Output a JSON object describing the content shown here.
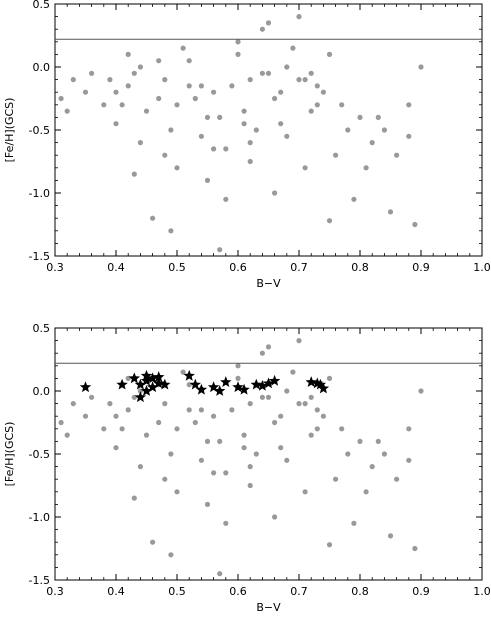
{
  "chart_data": [
    {
      "type": "scatter",
      "xlabel": "B−V",
      "ylabel": "[Fe/H](GCS)",
      "xlim": [
        0.3,
        1.0
      ],
      "ylim": [
        -1.5,
        0.5
      ],
      "xticks": [
        "0.3",
        "0.4",
        "0.5",
        "0.6",
        "0.7",
        "0.8",
        "0.9",
        "1.0"
      ],
      "yticks": [
        "0.5",
        "0.0",
        "-0.5",
        "-1.0",
        "-1.5"
      ],
      "hline": 0.22,
      "grid": false,
      "point_color": "#999999",
      "series": [
        {
          "x": [
            0.31,
            0.33,
            0.36,
            0.38,
            0.4,
            0.42,
            0.45,
            0.48,
            0.5,
            0.53,
            0.56,
            0.59,
            0.62,
            0.65,
            0.68,
            0.71,
            0.74,
            0.77,
            0.8,
            0.84,
            0.88,
            0.9,
            0.32,
            0.35,
            0.39,
            0.43,
            0.47,
            0.52,
            0.57,
            0.61,
            0.66,
            0.7,
            0.73,
            0.78,
            0.82,
            0.86,
            0.4,
            0.44,
            0.49,
            0.54,
            0.58,
            0.63,
            0.67,
            0.72,
            0.76,
            0.81,
            0.42,
            0.51,
            0.6,
            0.64,
            0.69,
            0.75,
            0.5,
            0.55,
            0.62,
            0.46,
            0.58,
            0.66,
            0.71,
            0.79,
            0.85,
            0.89,
            0.43,
            0.48,
            0.56,
            0.62,
            0.68,
            0.44,
            0.52,
            0.6,
            0.72,
            0.83,
            0.75,
            0.49,
            0.57,
            0.65,
            0.7,
            0.54,
            0.47,
            0.61,
            0.67,
            0.73,
            0.88,
            0.55,
            0.41,
            0.64
          ],
          "y": [
            -0.25,
            -0.1,
            -0.05,
            -0.3,
            -0.2,
            -0.15,
            -0.35,
            -0.1,
            -0.3,
            -0.25,
            -0.2,
            -0.15,
            -0.1,
            -0.05,
            0.0,
            -0.1,
            -0.2,
            -0.3,
            -0.4,
            -0.5,
            -0.55,
            0.0,
            -0.35,
            -0.2,
            -0.1,
            -0.05,
            0.05,
            -0.15,
            -0.4,
            -0.35,
            -0.25,
            -0.1,
            -0.3,
            -0.5,
            -0.6,
            -0.7,
            -0.45,
            -0.6,
            -0.5,
            -0.55,
            -0.65,
            -0.5,
            -0.45,
            -0.35,
            -0.7,
            -0.8,
            0.1,
            0.15,
            0.2,
            0.3,
            0.15,
            0.1,
            -0.8,
            -0.9,
            -0.75,
            -1.2,
            -1.05,
            -1.0,
            -0.8,
            -1.05,
            -1.15,
            -1.25,
            -0.85,
            -0.7,
            -0.65,
            -0.6,
            -0.55,
            0.0,
            0.05,
            0.1,
            -0.05,
            -0.4,
            -1.22,
            -1.3,
            -1.45,
            0.35,
            0.4,
            -0.15,
            -0.25,
            -0.45,
            -0.2,
            -0.15,
            -0.3,
            -0.4,
            -0.3,
            -0.05
          ]
        }
      ]
    },
    {
      "type": "scatter",
      "xlabel": "B−V",
      "ylabel": "[Fe/H](GCS)",
      "xlim": [
        0.3,
        1.0
      ],
      "ylim": [
        -1.5,
        0.5
      ],
      "xticks": [
        "0.3",
        "0.4",
        "0.5",
        "0.6",
        "0.7",
        "0.8",
        "0.9",
        "1.0"
      ],
      "yticks": [
        "0.5",
        "0.0",
        "-0.5",
        "-1.0",
        "-1.5"
      ],
      "hline": 0.22,
      "grid": false,
      "point_color": "#999999",
      "star_color": "#000000",
      "series": [
        {
          "x": [
            0.31,
            0.33,
            0.36,
            0.38,
            0.4,
            0.42,
            0.45,
            0.48,
            0.5,
            0.53,
            0.56,
            0.59,
            0.62,
            0.65,
            0.68,
            0.71,
            0.74,
            0.77,
            0.8,
            0.84,
            0.88,
            0.9,
            0.32,
            0.35,
            0.39,
            0.43,
            0.47,
            0.52,
            0.57,
            0.61,
            0.66,
            0.7,
            0.73,
            0.78,
            0.82,
            0.86,
            0.4,
            0.44,
            0.49,
            0.54,
            0.58,
            0.63,
            0.67,
            0.72,
            0.76,
            0.81,
            0.42,
            0.51,
            0.6,
            0.64,
            0.69,
            0.75,
            0.5,
            0.55,
            0.62,
            0.46,
            0.58,
            0.66,
            0.71,
            0.79,
            0.85,
            0.89,
            0.43,
            0.48,
            0.56,
            0.62,
            0.68,
            0.44,
            0.52,
            0.6,
            0.72,
            0.83,
            0.75,
            0.49,
            0.57,
            0.65,
            0.7,
            0.54,
            0.47,
            0.61,
            0.67,
            0.73,
            0.88,
            0.55,
            0.41,
            0.64
          ],
          "y": [
            -0.25,
            -0.1,
            -0.05,
            -0.3,
            -0.2,
            -0.15,
            -0.35,
            -0.1,
            -0.3,
            -0.25,
            -0.2,
            -0.15,
            -0.1,
            -0.05,
            0.0,
            -0.1,
            -0.2,
            -0.3,
            -0.4,
            -0.5,
            -0.55,
            0.0,
            -0.35,
            -0.2,
            -0.1,
            -0.05,
            0.05,
            -0.15,
            -0.4,
            -0.35,
            -0.25,
            -0.1,
            -0.3,
            -0.5,
            -0.6,
            -0.7,
            -0.45,
            -0.6,
            -0.5,
            -0.55,
            -0.65,
            -0.5,
            -0.45,
            -0.35,
            -0.7,
            -0.8,
            0.1,
            0.15,
            0.2,
            0.3,
            0.15,
            0.1,
            -0.8,
            -0.9,
            -0.75,
            -1.2,
            -1.05,
            -1.0,
            -0.8,
            -1.05,
            -1.15,
            -1.25,
            -0.85,
            -0.7,
            -0.65,
            -0.6,
            -0.55,
            0.0,
            0.05,
            0.1,
            -0.05,
            -0.4,
            -1.22,
            -1.3,
            -1.45,
            0.35,
            0.4,
            -0.15,
            -0.25,
            -0.45,
            -0.2,
            -0.15,
            -0.3,
            -0.4,
            -0.3,
            -0.05
          ]
        },
        {
          "marker": "star",
          "x": [
            0.35,
            0.41,
            0.43,
            0.44,
            0.45,
            0.45,
            0.46,
            0.46,
            0.47,
            0.47,
            0.48,
            0.52,
            0.53,
            0.54,
            0.56,
            0.57,
            0.58,
            0.6,
            0.61,
            0.63,
            0.64,
            0.65,
            0.66,
            0.72,
            0.73,
            0.74,
            0.735,
            0.44,
            0.45
          ],
          "y": [
            0.03,
            0.05,
            0.1,
            0.05,
            0.08,
            0.12,
            0.03,
            0.1,
            0.06,
            0.11,
            0.05,
            0.12,
            0.05,
            0.01,
            0.03,
            0.0,
            0.07,
            0.03,
            0.01,
            0.05,
            0.04,
            0.06,
            0.08,
            0.07,
            0.06,
            0.02,
            0.05,
            -0.05,
            0.0
          ]
        }
      ]
    }
  ]
}
